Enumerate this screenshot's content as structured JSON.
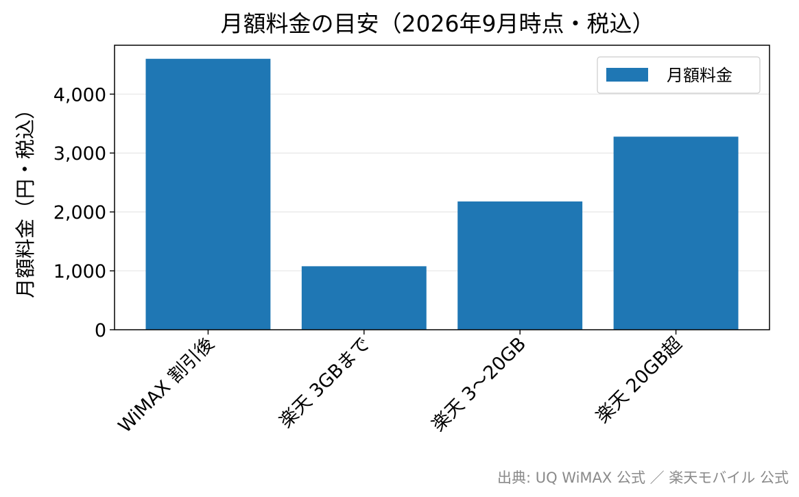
{
  "chart_data": {
    "type": "bar",
    "title": "月額料金の目安（2026年9月時点・税込）",
    "xlabel": "",
    "ylabel": "月額料金（円・税込）",
    "categories": [
      "WiMAX 割引後",
      "楽天 3GBまで",
      "楽天 3〜20GB",
      "楽天 20GB超"
    ],
    "series": [
      {
        "name": "月額料金",
        "values": [
          4600,
          1078,
          2178,
          3278
        ],
        "color": "#1f77b4"
      }
    ],
    "ylim": [
      0,
      4830
    ],
    "yticks": [
      0,
      1000,
      2000,
      3000,
      4000
    ],
    "ytick_labels": [
      "0",
      "1,000",
      "2,000",
      "3,000",
      "4,000"
    ],
    "grid": "horizontal",
    "legend": "top-right"
  },
  "source_note": "出典: UQ WiMAX 公式 ／ 楽天モバイル 公式"
}
